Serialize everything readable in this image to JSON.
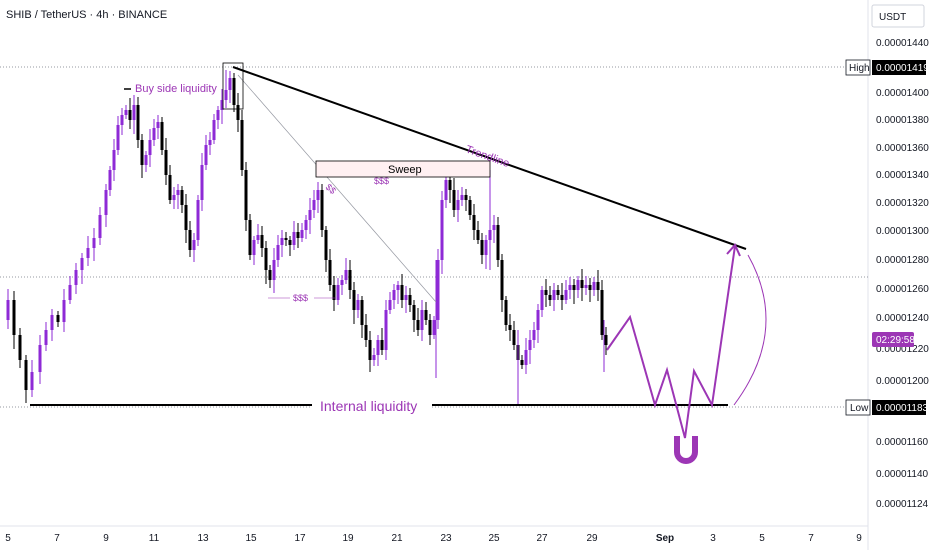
{
  "header": {
    "title": "SHIB / TetherUS · 4h · BINANCE",
    "currency": "USDT"
  },
  "colors": {
    "bull": "#8e2ad6",
    "bear": "#000000",
    "annotation": "#9c36b5",
    "axis_text": "#131722",
    "grid_dotted": "#9598a1"
  },
  "chart_data": {
    "type": "candlestick",
    "title": "SHIB / TetherUS · 4h · BINANCE",
    "ylabel": "USDT",
    "x_ticks": [
      "5",
      "7",
      "9",
      "11",
      "13",
      "15",
      "17",
      "19",
      "21",
      "23",
      "25",
      "27",
      "29",
      "Sep",
      "3",
      "5",
      "7",
      "9"
    ],
    "y_ticks": [
      "0.00001440",
      "0.00001400",
      "0.00001380",
      "0.00001360",
      "0.00001340",
      "0.00001320",
      "0.00001300",
      "0.00001280",
      "0.00001260",
      "0.00001240",
      "0.00001220",
      "0.00001200",
      "0.00001160",
      "0.00001140",
      "0.00001124"
    ],
    "high": {
      "label": "High",
      "value": "0.00001419"
    },
    "low": {
      "label": "Low",
      "value": "0.00001183"
    },
    "countdown": "02:29:58",
    "grid": false,
    "annotations": {
      "buy_side": "Buy side liquidity",
      "sweep": "Sweep",
      "trendline": "Trendline",
      "internal": "Internal  liquidity",
      "dollars": "$$$",
      "dollars_short": "$$"
    },
    "projection": {
      "description_points": [
        "2023-08-29",
        "2023-09-04"
      ],
      "values": [
        1.22e-05,
        1.24e-05,
        1.18e-05,
        1.21e-05,
        1.16e-05,
        1.21e-05,
        1.18e-05,
        1.29e-05
      ]
    }
  }
}
